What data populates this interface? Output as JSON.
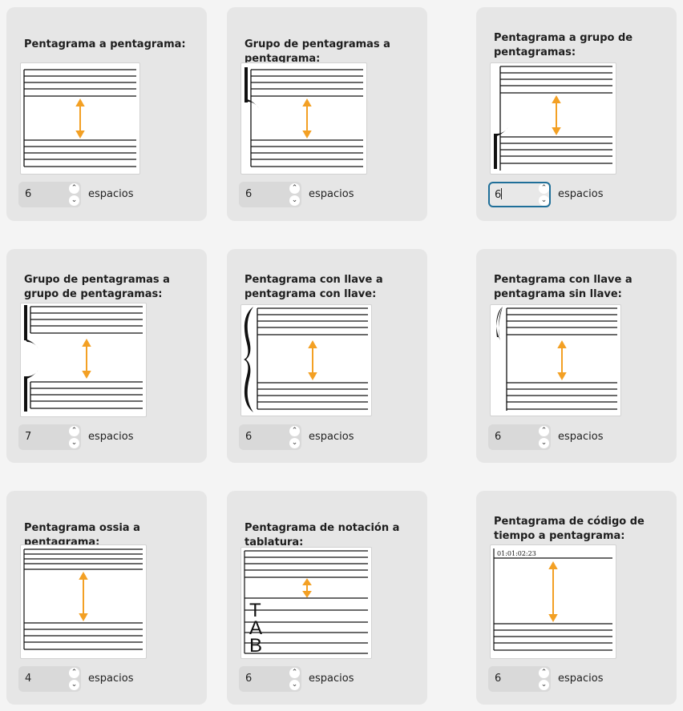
{
  "unit_label": "espacios",
  "colors": {
    "arrow": "#f3a024",
    "card_bg": "#e6e6e6",
    "focus": "#1f6f99"
  },
  "cards": [
    {
      "title": "Pentagrama a pentagrama:",
      "value": "6"
    },
    {
      "title": "Grupo de pentagramas a pentagrama:",
      "value": "6"
    },
    {
      "title": "Pentagrama a grupo de pentagramas:",
      "value": "6",
      "focused": true
    },
    {
      "title": "Grupo de pentagramas a grupo de pentagramas:",
      "value": "7"
    },
    {
      "title": "Pentagrama con llave a pentagrama con llave:",
      "value": "6"
    },
    {
      "title": "Pentagrama con llave a pentagrama sin llave:",
      "value": "6"
    },
    {
      "title": "Pentagrama ossia a pentagrama:",
      "value": "4"
    },
    {
      "title": "Pentagrama de notación a tablatura:",
      "value": "6"
    },
    {
      "title": "Pentagrama de código de tiempo a pentagrama:",
      "value": "6",
      "timecode": "01:01:02:23"
    }
  ],
  "tab_label": [
    "T",
    "A",
    "B"
  ],
  "spin_icons": {
    "up": "chevron-up-icon",
    "down": "chevron-down-icon"
  }
}
